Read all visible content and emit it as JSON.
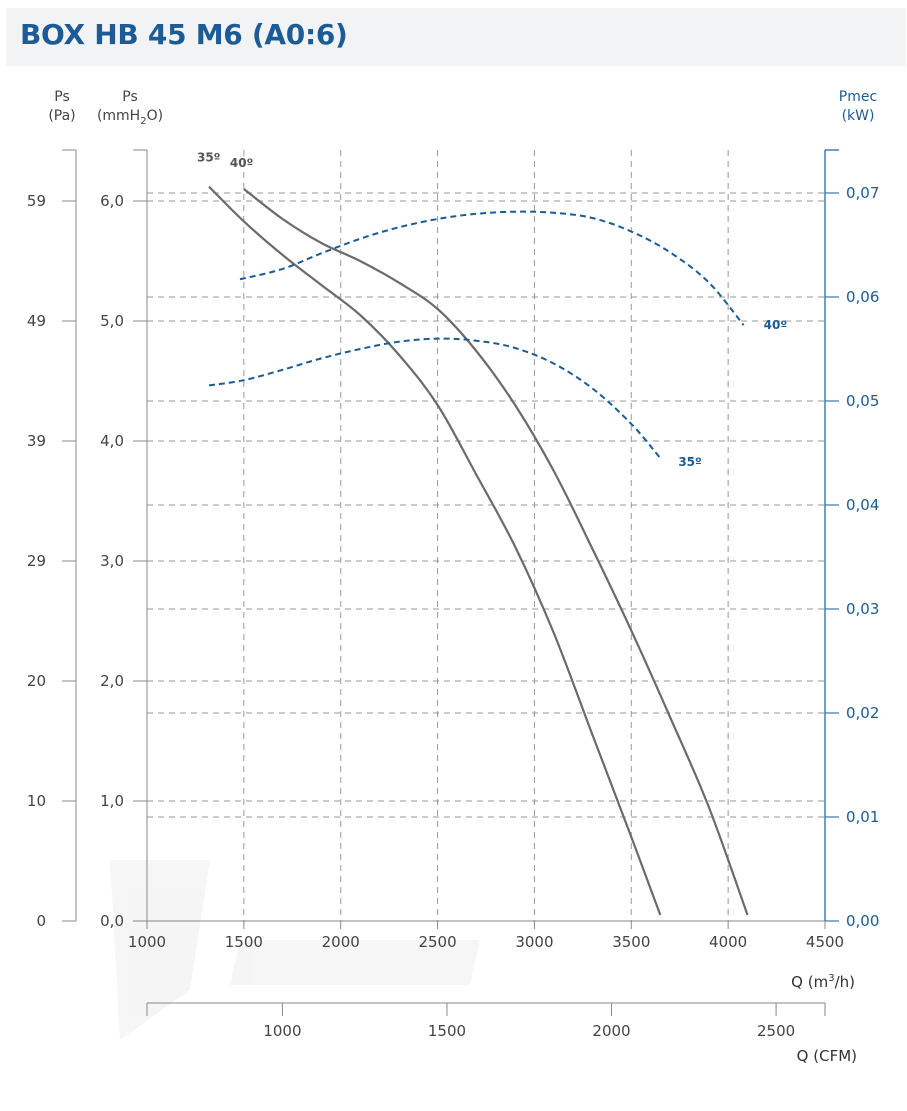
{
  "title": "BOX HB 45 M6 (A0:6)",
  "colors": {
    "title": "#1b5c96",
    "pressure_curve": "#6b6b6b",
    "power_curve": "#1b5c96",
    "grid": "#9a9a9a",
    "title_bar": "#f1f3f5"
  },
  "axes": {
    "left_pa": {
      "label_top": "Ps",
      "label_bottom": "(Pa)",
      "ticks": [
        "0",
        "10",
        "20",
        "29",
        "39",
        "49",
        "59"
      ]
    },
    "left_mmh2o": {
      "label_top": "Ps",
      "label_bottom_pre": "(mmH",
      "label_sub": "2",
      "label_bottom_post": "O)",
      "ticks": [
        "0,0",
        "1,0",
        "2,0",
        "3,0",
        "4,0",
        "5,0",
        "6,0"
      ],
      "range": [
        0,
        6.5
      ]
    },
    "right_kw": {
      "label_top": "Pmec",
      "label_bottom": "(kW)",
      "ticks": [
        "0,00",
        "0,01",
        "0,02",
        "0,03",
        "0,04",
        "0,05",
        "0,06",
        "0,07"
      ],
      "range": [
        0,
        0.075
      ]
    },
    "x_m3h": {
      "ticks": [
        "1000",
        "1500",
        "2000",
        "2500",
        "3000",
        "3500",
        "4000",
        "4500"
      ],
      "range": [
        1000,
        4500
      ],
      "label_pre": "Q (m",
      "label_sup": "3",
      "label_post": "/h)"
    },
    "x_cfm": {
      "ticks": [
        "1000",
        "1500",
        "2000",
        "2500"
      ],
      "label": "Q (CFM)"
    }
  },
  "chart_data": {
    "type": "line",
    "x_unit": "m3/h",
    "series": [
      {
        "name": "35º",
        "axis": "left_mmh2o",
        "kind": "pressure",
        "points": [
          [
            1320,
            6.12
          ],
          [
            1500,
            5.83
          ],
          [
            1700,
            5.55
          ],
          [
            1900,
            5.3
          ],
          [
            2100,
            5.05
          ],
          [
            2300,
            4.72
          ],
          [
            2500,
            4.3
          ],
          [
            2700,
            3.72
          ],
          [
            2900,
            3.12
          ],
          [
            3100,
            2.4
          ],
          [
            3300,
            1.55
          ],
          [
            3500,
            0.7
          ],
          [
            3650,
            0.05
          ]
        ]
      },
      {
        "name": "40º",
        "axis": "left_mmh2o",
        "kind": "pressure",
        "points": [
          [
            1500,
            6.1
          ],
          [
            1700,
            5.85
          ],
          [
            1900,
            5.65
          ],
          [
            2100,
            5.5
          ],
          [
            2300,
            5.32
          ],
          [
            2500,
            5.1
          ],
          [
            2700,
            4.75
          ],
          [
            2900,
            4.3
          ],
          [
            3100,
            3.75
          ],
          [
            3300,
            3.1
          ],
          [
            3500,
            2.42
          ],
          [
            3700,
            1.7
          ],
          [
            3900,
            0.95
          ],
          [
            4100,
            0.05
          ]
        ]
      },
      {
        "name": "40º",
        "axis": "right_kw",
        "kind": "power",
        "points": [
          [
            1480,
            0.0617
          ],
          [
            1700,
            0.0627
          ],
          [
            1900,
            0.0642
          ],
          [
            2100,
            0.0656
          ],
          [
            2300,
            0.0667
          ],
          [
            2500,
            0.0675
          ],
          [
            2700,
            0.068
          ],
          [
            2900,
            0.0682
          ],
          [
            3100,
            0.0681
          ],
          [
            3300,
            0.0676
          ],
          [
            3500,
            0.0663
          ],
          [
            3700,
            0.0643
          ],
          [
            3900,
            0.0614
          ],
          [
            4080,
            0.0573
          ]
        ]
      },
      {
        "name": "35º",
        "axis": "right_kw",
        "kind": "power",
        "points": [
          [
            1320,
            0.0515
          ],
          [
            1500,
            0.052
          ],
          [
            1700,
            0.053
          ],
          [
            1900,
            0.0541
          ],
          [
            2100,
            0.055
          ],
          [
            2300,
            0.0557
          ],
          [
            2500,
            0.056
          ],
          [
            2700,
            0.0558
          ],
          [
            2900,
            0.0551
          ],
          [
            3100,
            0.0536
          ],
          [
            3300,
            0.0512
          ],
          [
            3500,
            0.0478
          ],
          [
            3650,
            0.0445
          ]
        ]
      }
    ],
    "curve_labels": [
      "35º",
      "40º",
      "40º",
      "35º"
    ]
  }
}
